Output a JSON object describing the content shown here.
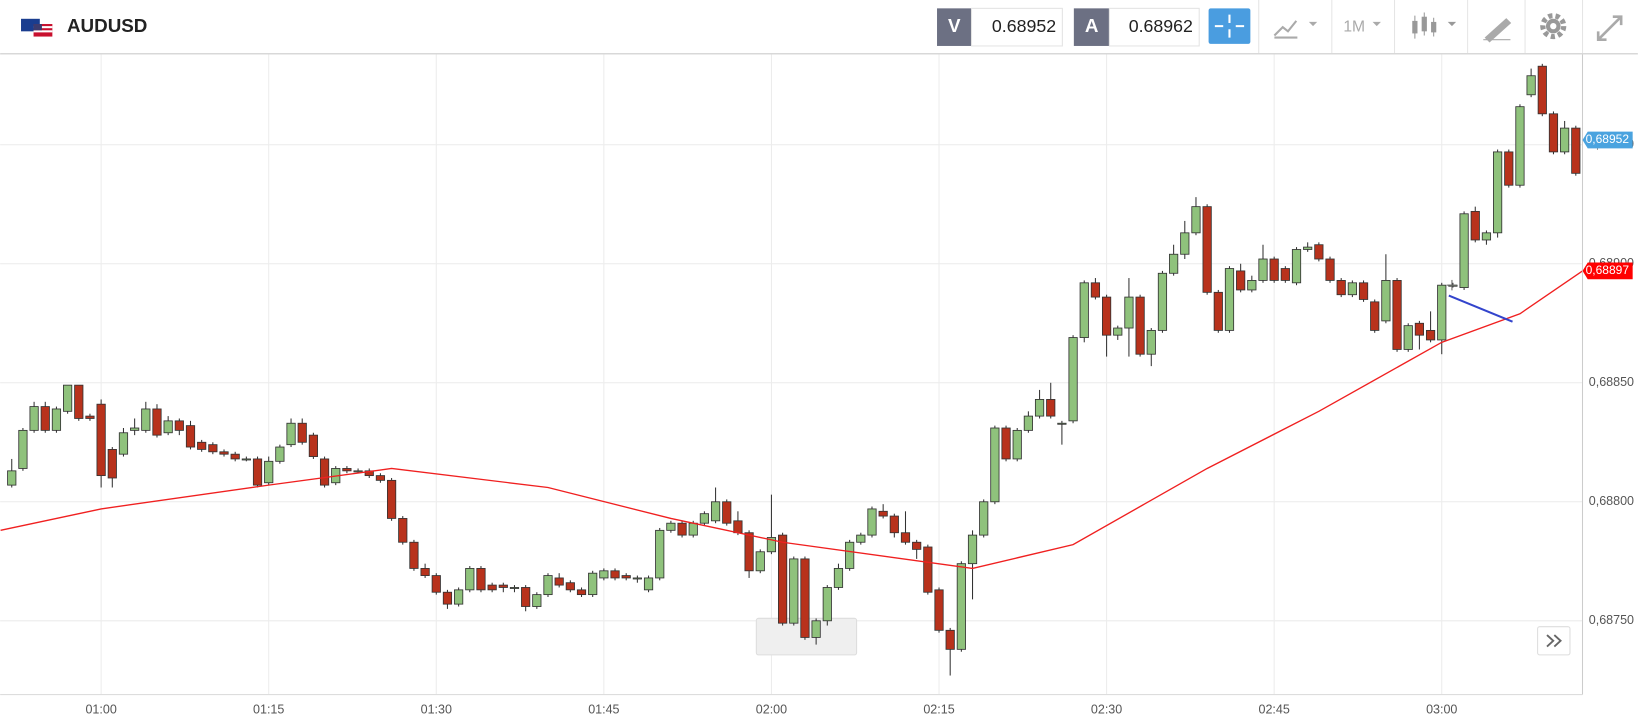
{
  "toolbar": {
    "symbol": "AUDUSD",
    "bid_label": "V",
    "bid": "0.68952",
    "ask_label": "A",
    "ask": "0.68962",
    "timeframe": "1M"
  },
  "chart_data": {
    "type": "candlestick",
    "x": [
      52,
      53,
      54,
      55,
      56,
      57,
      58,
      59,
      60,
      61,
      62,
      63,
      64,
      65,
      66,
      67,
      68,
      69,
      70,
      71,
      72,
      73,
      74,
      75,
      76,
      77,
      78,
      79,
      80,
      81,
      82,
      83,
      84,
      85,
      86,
      87,
      88,
      89,
      90,
      91,
      92,
      93,
      94,
      95,
      96,
      97,
      98,
      99,
      100,
      101,
      102,
      103,
      104,
      105,
      106,
      107,
      108,
      109,
      110,
      111,
      112,
      113,
      114,
      115,
      116,
      117,
      118,
      119,
      120,
      121,
      122,
      123,
      124,
      125,
      126,
      127,
      128,
      129,
      130,
      131,
      132,
      133,
      134,
      135,
      136,
      137,
      138,
      139,
      140,
      141,
      142,
      143,
      144,
      145,
      146,
      147,
      148,
      149,
      150,
      151,
      152,
      153,
      154,
      155,
      156,
      157,
      158,
      159,
      160,
      161,
      162,
      163,
      164,
      165,
      166,
      167,
      168,
      169,
      170,
      171,
      172,
      173,
      174,
      175,
      176,
      177,
      178,
      179,
      180,
      181,
      182,
      183,
      184,
      185,
      186,
      187,
      188,
      189,
      190,
      191,
      192
    ],
    "open": [
      0.68807,
      0.68814,
      0.6883,
      0.6884,
      0.6883,
      0.68838,
      0.68849,
      0.68836,
      0.68841,
      0.68822,
      0.6882,
      0.6883,
      0.6883,
      0.68839,
      0.68829,
      0.68834,
      0.68832,
      0.68825,
      0.68824,
      0.68821,
      0.6882,
      0.68818,
      0.68818,
      0.68808,
      0.68817,
      0.68824,
      0.68833,
      0.68828,
      0.68818,
      0.68808,
      0.68814,
      0.68813,
      0.68813,
      0.68811,
      0.68809,
      0.68793,
      0.68783,
      0.68772,
      0.68769,
      0.68762,
      0.68757,
      0.68763,
      0.68772,
      0.68765,
      0.68765,
      0.68764,
      0.68764,
      0.68756,
      0.68761,
      0.68768,
      0.68766,
      0.68763,
      0.68761,
      0.68768,
      0.68771,
      0.68769,
      0.68768,
      0.68763,
      0.68768,
      0.68788,
      0.68791,
      0.68786,
      0.68791,
      0.68792,
      0.688,
      0.68792,
      0.68787,
      0.68771,
      0.68779,
      0.68786,
      0.68749,
      0.68776,
      0.68743,
      0.6875,
      0.68764,
      0.68772,
      0.68783,
      0.68786,
      0.68796,
      0.68794,
      0.68787,
      0.68783,
      0.68781,
      0.68763,
      0.68746,
      0.68738,
      0.68774,
      0.68786,
      0.688,
      0.68831,
      0.68818,
      0.6883,
      0.68836,
      0.68843,
      0.68833,
      0.68834,
      0.68869,
      0.68892,
      0.68886,
      0.6887,
      0.68873,
      0.68886,
      0.68862,
      0.68872,
      0.68896,
      0.68904,
      0.68913,
      0.68924,
      0.68888,
      0.68872,
      0.68897,
      0.68889,
      0.68893,
      0.68902,
      0.68898,
      0.68892,
      0.68906,
      0.68908,
      0.68902,
      0.68893,
      0.68887,
      0.68892,
      0.68884,
      0.68876,
      0.68893,
      0.68864,
      0.68875,
      0.68872,
      0.68868,
      0.68891,
      0.6889,
      0.68922,
      0.6891,
      0.68913,
      0.68947,
      0.68933,
      0.68971,
      0.68983,
      0.68963,
      0.68947,
      0.68957
    ],
    "high": [
      0.68818,
      0.68831,
      0.68842,
      0.68842,
      0.6884,
      0.68849,
      0.68849,
      0.68837,
      0.68843,
      0.68823,
      0.68831,
      0.68835,
      0.68842,
      0.68841,
      0.68836,
      0.68835,
      0.68834,
      0.68826,
      0.68825,
      0.68822,
      0.68821,
      0.68819,
      0.68819,
      0.68819,
      0.68824,
      0.68835,
      0.68835,
      0.68829,
      0.68819,
      0.68815,
      0.68815,
      0.68814,
      0.68814,
      0.68812,
      0.6881,
      0.68794,
      0.68784,
      0.68774,
      0.6877,
      0.68763,
      0.68764,
      0.68773,
      0.68773,
      0.68766,
      0.68766,
      0.68765,
      0.68765,
      0.68762,
      0.6877,
      0.6877,
      0.68767,
      0.68764,
      0.68771,
      0.68772,
      0.68772,
      0.6877,
      0.68769,
      0.68769,
      0.68789,
      0.68792,
      0.68792,
      0.68792,
      0.68796,
      0.68806,
      0.68801,
      0.68796,
      0.68788,
      0.6878,
      0.68803,
      0.68787,
      0.68777,
      0.68777,
      0.68751,
      0.68765,
      0.68774,
      0.68784,
      0.68787,
      0.68798,
      0.68799,
      0.68795,
      0.68796,
      0.68784,
      0.68782,
      0.68764,
      0.68747,
      0.68775,
      0.68788,
      0.68801,
      0.68832,
      0.68832,
      0.68831,
      0.68838,
      0.68847,
      0.6885,
      0.68834,
      0.6887,
      0.68893,
      0.68894,
      0.68887,
      0.68874,
      0.68894,
      0.68887,
      0.68873,
      0.68897,
      0.68908,
      0.68918,
      0.68928,
      0.68925,
      0.68889,
      0.68899,
      0.689,
      0.68895,
      0.68908,
      0.68903,
      0.68899,
      0.68907,
      0.68909,
      0.68909,
      0.68903,
      0.68894,
      0.68893,
      0.68893,
      0.68885,
      0.68904,
      0.68894,
      0.68875,
      0.68876,
      0.6888,
      0.68892,
      0.68892,
      0.68922,
      0.68924,
      0.68914,
      0.68948,
      0.68948,
      0.68967,
      0.68982,
      0.68984,
      0.68964,
      0.6896,
      0.68958
    ],
    "low": [
      0.68806,
      0.68813,
      0.68829,
      0.68829,
      0.68829,
      0.68837,
      0.68834,
      0.68834,
      0.68806,
      0.68806,
      0.68819,
      0.68828,
      0.68829,
      0.68827,
      0.68828,
      0.68828,
      0.68822,
      0.68821,
      0.6882,
      0.68819,
      0.68817,
      0.68817,
      0.68806,
      0.68807,
      0.68816,
      0.68823,
      0.68824,
      0.68818,
      0.68806,
      0.68807,
      0.68812,
      0.68812,
      0.6881,
      0.68808,
      0.68792,
      0.68782,
      0.68771,
      0.68768,
      0.68761,
      0.68755,
      0.68756,
      0.68762,
      0.68762,
      0.68762,
      0.68762,
      0.68762,
      0.68754,
      0.68755,
      0.6876,
      0.68764,
      0.68762,
      0.6876,
      0.6876,
      0.68767,
      0.68767,
      0.68767,
      0.68766,
      0.68762,
      0.68767,
      0.68787,
      0.68785,
      0.68785,
      0.6879,
      0.68791,
      0.6879,
      0.68786,
      0.68768,
      0.6877,
      0.68778,
      0.68748,
      0.68748,
      0.68742,
      0.6874,
      0.68748,
      0.68763,
      0.68771,
      0.68782,
      0.68785,
      0.68793,
      0.68785,
      0.68782,
      0.68776,
      0.68761,
      0.68745,
      0.68727,
      0.68737,
      0.68759,
      0.68785,
      0.68799,
      0.68817,
      0.68817,
      0.68829,
      0.68835,
      0.68835,
      0.68824,
      0.68833,
      0.68867,
      0.68885,
      0.68861,
      0.68868,
      0.68861,
      0.68861,
      0.68857,
      0.68871,
      0.68895,
      0.68902,
      0.68912,
      0.68887,
      0.68871,
      0.68871,
      0.68888,
      0.68888,
      0.68892,
      0.68892,
      0.68892,
      0.68891,
      0.68905,
      0.68901,
      0.68892,
      0.68886,
      0.68886,
      0.68884,
      0.68871,
      0.68875,
      0.68863,
      0.68863,
      0.68864,
      0.68867,
      0.68862,
      0.6889,
      0.68889,
      0.68909,
      0.68908,
      0.68911,
      0.68932,
      0.68932,
      0.6897,
      0.68962,
      0.68946,
      0.68946,
      0.68937
    ],
    "close": [
      0.68813,
      0.6883,
      0.6884,
      0.6883,
      0.68839,
      0.68849,
      0.68835,
      0.68835,
      0.68811,
      0.6881,
      0.68829,
      0.68831,
      0.68839,
      0.68828,
      0.68834,
      0.6883,
      0.68823,
      0.68822,
      0.68821,
      0.6882,
      0.68818,
      0.68818,
      0.68807,
      0.68817,
      0.68823,
      0.68833,
      0.68825,
      0.68819,
      0.68807,
      0.68814,
      0.68813,
      0.68813,
      0.68811,
      0.68809,
      0.68793,
      0.68783,
      0.68772,
      0.68769,
      0.68762,
      0.68757,
      0.68763,
      0.68772,
      0.68763,
      0.68763,
      0.68764,
      0.68764,
      0.68756,
      0.68761,
      0.68769,
      0.68765,
      0.68763,
      0.68761,
      0.6877,
      0.68771,
      0.68768,
      0.68768,
      0.68768,
      0.68768,
      0.68788,
      0.68791,
      0.68786,
      0.68791,
      0.68795,
      0.688,
      0.68791,
      0.68787,
      0.68771,
      0.68779,
      0.68785,
      0.68749,
      0.68776,
      0.68743,
      0.6875,
      0.68764,
      0.68772,
      0.68783,
      0.68786,
      0.68797,
      0.68794,
      0.68787,
      0.68783,
      0.6878,
      0.68762,
      0.68746,
      0.68738,
      0.68774,
      0.68786,
      0.688,
      0.68831,
      0.68818,
      0.6883,
      0.68836,
      0.68843,
      0.68836,
      0.68833,
      0.68869,
      0.68892,
      0.68886,
      0.6887,
      0.68873,
      0.68886,
      0.68862,
      0.68872,
      0.68896,
      0.68904,
      0.68913,
      0.68924,
      0.68888,
      0.68872,
      0.68898,
      0.68889,
      0.68893,
      0.68902,
      0.68893,
      0.68893,
      0.68906,
      0.68907,
      0.68902,
      0.68893,
      0.68887,
      0.68892,
      0.68885,
      0.68872,
      0.68893,
      0.68864,
      0.68874,
      0.6887,
      0.68868,
      0.68891,
      0.68891,
      0.68921,
      0.6891,
      0.68913,
      0.68947,
      0.68933,
      0.68966,
      0.68979,
      0.68963,
      0.68947,
      0.68957,
      0.68938
    ],
    "up_color": "#8fc27c",
    "down_color": "#b8321c",
    "ma": {
      "x": [
        51,
        60,
        75,
        86,
        100,
        111,
        121,
        138,
        147,
        159,
        169,
        180,
        187,
        192.6
      ],
      "values": [
        0.68788,
        0.68797,
        0.68807,
        0.68814,
        0.68806,
        0.68793,
        0.68783,
        0.68772,
        0.68782,
        0.68814,
        0.68838,
        0.68867,
        0.68879,
        0.68897
      ],
      "color": "#f02020"
    },
    "xlim": [
      50.96,
      192.6
    ],
    "ylim": [
      0.68719,
      0.68988
    ],
    "xticks": [
      {
        "value": 60,
        "label": "01:00"
      },
      {
        "value": 75,
        "label": "01:15"
      },
      {
        "value": 90,
        "label": "01:30"
      },
      {
        "value": 105,
        "label": "01:45"
      },
      {
        "value": 120,
        "label": "02:00"
      },
      {
        "value": 135,
        "label": "02:15"
      },
      {
        "value": 150,
        "label": "02:30"
      },
      {
        "value": 165,
        "label": "02:45"
      },
      {
        "value": 180,
        "label": "03:00"
      }
    ],
    "yticks": [
      {
        "value": 0.6875,
        "label": "0,68750"
      },
      {
        "value": 0.688,
        "label": "0,68800"
      },
      {
        "value": 0.6885,
        "label": "0,68850"
      },
      {
        "value": 0.689,
        "label": "0,68900"
      },
      {
        "value": 0.6895,
        "label": "0,68950"
      }
    ],
    "price_labels": [
      {
        "value": 0.68952,
        "label": "0,68952",
        "color": "#4aa3df"
      },
      {
        "value": 0.68897,
        "label": "0,68897",
        "color": "#ff0000"
      }
    ],
    "grid": true
  }
}
